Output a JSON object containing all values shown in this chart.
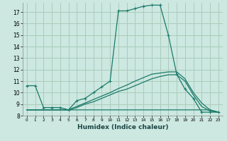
{
  "xlabel": "Humidex (Indice chaleur)",
  "bg_color": "#cce8e0",
  "grid_color": "#aaccbb",
  "line_color": "#1a7a6a",
  "xlim": [
    -0.5,
    23.5
  ],
  "ylim": [
    8,
    17.8
  ],
  "xticks": [
    0,
    1,
    2,
    3,
    4,
    5,
    6,
    7,
    8,
    9,
    10,
    11,
    12,
    13,
    14,
    15,
    16,
    17,
    18,
    19,
    20,
    21,
    22,
    23
  ],
  "yticks": [
    8,
    9,
    10,
    11,
    12,
    13,
    14,
    15,
    16,
    17
  ],
  "line1_x": [
    0,
    1,
    2,
    3,
    4,
    5,
    6,
    7,
    8,
    9,
    10,
    11,
    12,
    13,
    14,
    15,
    16,
    17,
    18,
    19,
    20,
    21,
    22,
    23
  ],
  "line1_y": [
    10.6,
    10.6,
    8.7,
    8.7,
    8.7,
    8.5,
    9.3,
    9.5,
    10.0,
    10.5,
    11.0,
    17.1,
    17.1,
    17.3,
    17.5,
    17.6,
    17.6,
    15.0,
    11.6,
    10.3,
    9.5,
    8.3,
    8.3,
    8.3
  ],
  "line2_x": [
    0,
    1,
    2,
    3,
    4,
    5,
    6,
    7,
    8,
    9,
    10,
    11,
    12,
    13,
    14,
    15,
    16,
    17,
    18,
    19,
    20,
    21,
    22,
    23
  ],
  "line2_y": [
    8.5,
    8.5,
    8.5,
    8.5,
    8.5,
    8.5,
    8.5,
    8.5,
    8.5,
    8.5,
    8.5,
    8.5,
    8.5,
    8.5,
    8.5,
    8.5,
    8.5,
    8.5,
    8.5,
    8.5,
    8.5,
    8.5,
    8.5,
    8.3
  ],
  "line3_x": [
    0,
    1,
    2,
    3,
    4,
    5,
    6,
    7,
    8,
    9,
    10,
    11,
    12,
    13,
    14,
    15,
    16,
    17,
    18,
    19,
    20,
    21,
    22,
    23
  ],
  "line3_y": [
    8.5,
    8.5,
    8.5,
    8.5,
    8.5,
    8.5,
    8.7,
    9.0,
    9.2,
    9.5,
    9.8,
    10.1,
    10.3,
    10.6,
    10.9,
    11.2,
    11.4,
    11.55,
    11.55,
    11.0,
    9.8,
    8.8,
    8.4,
    8.3
  ],
  "line4_x": [
    0,
    1,
    2,
    3,
    4,
    5,
    6,
    7,
    8,
    9,
    10,
    11,
    12,
    13,
    14,
    15,
    16,
    17,
    18,
    19,
    20,
    21,
    22,
    23
  ],
  "line4_y": [
    8.5,
    8.5,
    8.5,
    8.5,
    8.5,
    8.5,
    8.8,
    9.1,
    9.4,
    9.7,
    10.0,
    10.35,
    10.65,
    11.0,
    11.3,
    11.6,
    11.7,
    11.8,
    11.8,
    11.2,
    10.0,
    9.1,
    8.5,
    8.3
  ]
}
